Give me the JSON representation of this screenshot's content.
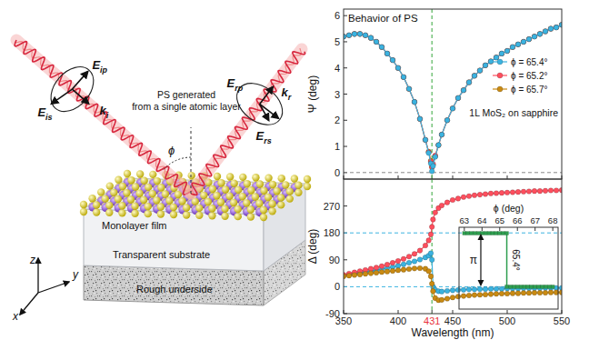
{
  "diagram": {
    "caption": [
      "PS generated",
      "from a single atomic layer"
    ],
    "angle_label": "ϕ",
    "incident_fields": [
      {
        "text": "E",
        "sub": "ip"
      },
      {
        "text": "E",
        "sub": "is"
      },
      {
        "text": "k",
        "sub": "i"
      }
    ],
    "reflected_fields": [
      {
        "text": "E",
        "sub": "rp"
      },
      {
        "text": "E",
        "sub": "rs"
      },
      {
        "text": "k",
        "sub": "r"
      }
    ],
    "layers": [
      "Monolayer film",
      "Transparent substrate",
      "Rough underside"
    ],
    "axes": [
      "z",
      "x",
      "y"
    ]
  },
  "chart_data": [
    {
      "type": "line",
      "title": "Behavior of PS",
      "y_label": "Ψ (deg)",
      "x": [
        350,
        355,
        360,
        365,
        370,
        375,
        380,
        385,
        390,
        395,
        400,
        405,
        410,
        415,
        420,
        425,
        428,
        430,
        431,
        432,
        434,
        437,
        440,
        445,
        450,
        455,
        460,
        465,
        470,
        475,
        480,
        485,
        490,
        495,
        500,
        505,
        510,
        515,
        520,
        525,
        530,
        535,
        540,
        545,
        550
      ],
      "series": [
        {
          "name": "ϕ = 65.4°",
          "color": "#3bb3e0",
          "marker": "circle",
          "values": [
            5.2,
            5.25,
            5.3,
            5.3,
            5.25,
            5.15,
            5.0,
            4.8,
            4.55,
            4.3,
            4.0,
            3.65,
            3.2,
            2.7,
            2.05,
            1.25,
            0.75,
            0.35,
            0.05,
            0.25,
            0.6,
            1.05,
            1.45,
            2.0,
            2.45,
            2.85,
            3.15,
            3.45,
            3.7,
            3.9,
            4.1,
            4.25,
            4.4,
            4.55,
            4.65,
            4.8,
            4.9,
            5.0,
            5.1,
            5.2,
            5.3,
            5.4,
            5.5,
            5.55,
            5.65
          ]
        },
        {
          "name": "ϕ = 65.2°",
          "color": "#ff4f5e",
          "marker": "circle",
          "values": [
            5.2,
            5.25,
            5.3,
            5.3,
            5.25,
            5.15,
            5.0,
            4.8,
            4.55,
            4.3,
            4.0,
            3.65,
            3.2,
            2.7,
            2.05,
            1.25,
            0.78,
            0.42,
            0.2,
            0.33,
            0.65,
            1.05,
            1.45,
            2.0,
            2.45,
            2.85,
            3.15,
            3.45,
            3.7,
            3.9,
            4.1,
            4.25,
            4.4,
            4.55,
            4.65,
            4.8,
            4.9,
            5.0,
            5.1,
            5.2,
            5.3,
            5.4,
            5.5,
            5.55,
            5.65
          ]
        },
        {
          "name": "ϕ = 65.7°",
          "color": "#c98a12",
          "marker": "circle",
          "values": [
            5.2,
            5.25,
            5.3,
            5.3,
            5.25,
            5.15,
            5.0,
            4.8,
            4.55,
            4.3,
            4.0,
            3.65,
            3.2,
            2.7,
            2.05,
            1.25,
            0.8,
            0.45,
            0.22,
            0.3,
            0.62,
            1.05,
            1.45,
            2.0,
            2.45,
            2.85,
            3.15,
            3.45,
            3.7,
            3.9,
            4.1,
            4.25,
            4.4,
            4.55,
            4.65,
            4.8,
            4.9,
            5.0,
            5.1,
            5.2,
            5.3,
            5.4,
            5.5,
            5.55,
            5.65
          ]
        }
      ],
      "xlim": [
        350,
        550
      ],
      "ylim": [
        -0.25,
        6.25
      ],
      "xticks": [
        350,
        400,
        431,
        450,
        500,
        550
      ],
      "yticks": [
        0,
        1,
        2,
        3,
        4,
        5,
        6
      ],
      "tick_labels": "y",
      "legend": "right",
      "annotations": [
        "1L MoS₂ on sapphire"
      ],
      "vlines": [
        431
      ],
      "hlines": [
        0
      ]
    },
    {
      "type": "line",
      "x_label": "Wavelength (nm)",
      "y_label": "Δ (deg)",
      "x": [
        350,
        355,
        360,
        365,
        370,
        375,
        380,
        385,
        390,
        395,
        400,
        405,
        410,
        415,
        420,
        425,
        428,
        430,
        431,
        432,
        434,
        437,
        440,
        445,
        450,
        455,
        460,
        465,
        470,
        475,
        480,
        485,
        490,
        495,
        500,
        505,
        510,
        515,
        520,
        525,
        530,
        535,
        540,
        545,
        550
      ],
      "series": [
        {
          "name": "ϕ = 65.4°",
          "color": "#3bb3e0",
          "marker": "circle",
          "values": [
            37,
            40,
            43,
            46,
            49,
            52,
            55,
            59,
            62,
            66,
            70,
            75,
            80,
            85,
            91,
            98,
            104,
            112,
            90,
            0,
            -10,
            -15,
            -16,
            -14,
            -12,
            -11,
            -10,
            -9,
            -9,
            -8,
            -8,
            -7,
            -7,
            -7,
            -6,
            -6,
            -6,
            -5,
            -5,
            -5,
            -5,
            -4,
            -4,
            -4,
            -4
          ]
        },
        {
          "name": "ϕ = 65.2°",
          "color": "#ff4f5e",
          "marker": "circle",
          "values": [
            40,
            44,
            48,
            52,
            56,
            60,
            64,
            69,
            74,
            80,
            86,
            93,
            101,
            110,
            121,
            138,
            155,
            175,
            200,
            225,
            248,
            263,
            272,
            282,
            290,
            295,
            300,
            303,
            306,
            308,
            310,
            312,
            313,
            314,
            315,
            316,
            317,
            318,
            319,
            320,
            320,
            321,
            322,
            322,
            323
          ]
        },
        {
          "name": "ϕ = 65.7°",
          "color": "#c98a12",
          "marker": "circle",
          "values": [
            35,
            37,
            39,
            41,
            43,
            45,
            47,
            49,
            51,
            53,
            55,
            57,
            59,
            61,
            62,
            60,
            52,
            35,
            10,
            -15,
            -38,
            -45,
            -44,
            -40,
            -36,
            -33,
            -31,
            -29,
            -28,
            -27,
            -26,
            -25,
            -24,
            -23,
            -23,
            -22,
            -22,
            -21,
            -21,
            -20,
            -20,
            -20,
            -19,
            -19,
            -19
          ]
        }
      ],
      "xlim": [
        350,
        550
      ],
      "ylim": [
        -90,
        360
      ],
      "xticks": [
        350,
        400,
        431,
        450,
        500,
        550
      ],
      "yticks": [
        -90,
        0,
        90,
        180,
        270
      ],
      "vlines": [
        431
      ],
      "hlines": [
        0,
        180
      ]
    },
    {
      "type": "line",
      "x_label": "ϕ (deg)",
      "x": [
        63,
        63.2,
        63.4,
        63.6,
        63.8,
        64,
        64.2,
        64.4,
        64.6,
        64.8,
        65,
        65.2,
        65.4,
        65.4,
        65.6,
        65.8,
        66,
        66.2,
        66.4,
        66.6,
        66.8,
        67,
        67.2,
        67.4,
        67.6,
        67.8,
        68
      ],
      "series": [
        {
          "color": "#2e9e4f",
          "marker": "square",
          "values": [
            180,
            180,
            180,
            180,
            180,
            180,
            180,
            180,
            180,
            180,
            180,
            180,
            180,
            0,
            0,
            0,
            0,
            0,
            0,
            0,
            0,
            0,
            0,
            0,
            0,
            0,
            0
          ]
        }
      ],
      "xlim": [
        62.7,
        68.3
      ],
      "ylim": [
        -75,
        200
      ],
      "xticks": [
        63,
        64,
        65,
        66,
        67,
        68
      ],
      "tick_labels": "x",
      "annotations": [
        "π",
        "65.4°"
      ]
    }
  ]
}
